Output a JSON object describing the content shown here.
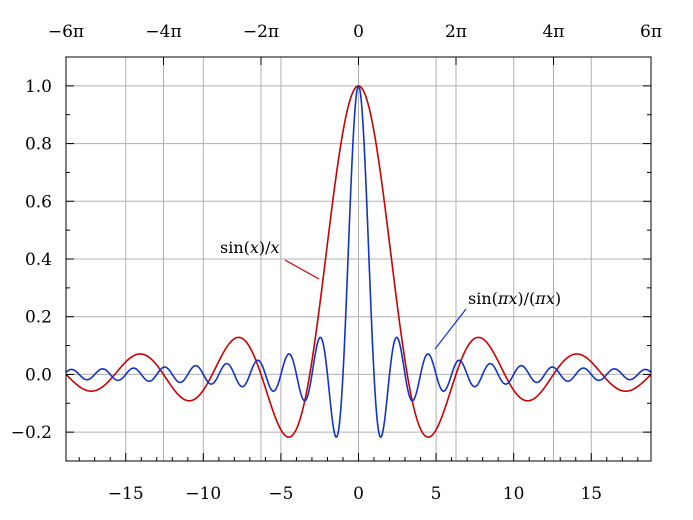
{
  "chart_data": {
    "type": "line",
    "title": "",
    "xlabel": "",
    "ylabel": "",
    "xlim": [
      -18.85,
      18.85
    ],
    "ylim": [
      -0.3,
      1.1
    ],
    "grid": true,
    "x_ticks": [
      -15,
      -10,
      -5,
      0,
      5,
      10,
      15
    ],
    "x_tick_labels": [
      "−15",
      "−10",
      "−5",
      "0",
      "5",
      "10",
      "15"
    ],
    "y_ticks": [
      -0.2,
      0.0,
      0.2,
      0.4,
      0.6,
      0.8,
      1.0
    ],
    "y_tick_labels": [
      "−0.2",
      "0.0",
      "0.2",
      "0.4",
      "0.6",
      "0.8",
      "1.0"
    ],
    "top_ticks": [
      -18.85,
      -12.566,
      -6.283,
      0,
      6.283,
      12.566,
      18.85
    ],
    "top_tick_labels": [
      "−6π",
      "−4π",
      "−2π",
      "0",
      "2π",
      "4π",
      "6π"
    ],
    "series": [
      {
        "name": "sin(x)/x",
        "color": "#cc0000",
        "function": "sin(x)/x",
        "points": [
          [
            -18.85,
            0.0
          ],
          [
            -17.28,
            -0.058
          ],
          [
            -15.71,
            0.0
          ],
          [
            -14.14,
            0.071
          ],
          [
            -12.57,
            0.0
          ],
          [
            -10.99,
            -0.091
          ],
          [
            -9.42,
            0.0
          ],
          [
            -7.73,
            0.128
          ],
          [
            -6.28,
            0.0
          ],
          [
            -4.49,
            -0.217
          ],
          [
            -3.14,
            0.0
          ],
          [
            -1.57,
            0.637
          ],
          [
            0,
            1.0
          ],
          [
            1.57,
            0.637
          ],
          [
            3.14,
            0.0
          ],
          [
            4.49,
            -0.217
          ],
          [
            6.28,
            0.0
          ],
          [
            7.73,
            0.128
          ],
          [
            9.42,
            0.0
          ],
          [
            10.99,
            -0.091
          ],
          [
            12.57,
            0.0
          ],
          [
            14.14,
            0.071
          ],
          [
            15.71,
            0.0
          ],
          [
            17.28,
            -0.058
          ],
          [
            18.85,
            0.0
          ]
        ]
      },
      {
        "name": "sin(πx)/(πx)",
        "color": "#1133cc",
        "function": "sin(pi*x)/(pi*x)",
        "points": [
          [
            -4.5,
            0.071
          ],
          [
            -3.5,
            -0.091
          ],
          [
            -2.5,
            0.127
          ],
          [
            -1.5,
            -0.212
          ],
          [
            -1,
            0.0
          ],
          [
            -0.5,
            0.637
          ],
          [
            0,
            1.0
          ],
          [
            0.5,
            0.637
          ],
          [
            1,
            0.0
          ],
          [
            1.5,
            -0.212
          ],
          [
            2.5,
            0.127
          ],
          [
            3.5,
            -0.091
          ],
          [
            4.5,
            0.071
          ]
        ]
      }
    ],
    "annotations": [
      {
        "id": "sinc",
        "text_parts": [
          "sin(",
          "x",
          ")/",
          "x"
        ]
      },
      {
        "id": "normsinc",
        "text_parts": [
          "sin(",
          "πx",
          ")/(",
          "πx",
          ")"
        ]
      }
    ]
  }
}
